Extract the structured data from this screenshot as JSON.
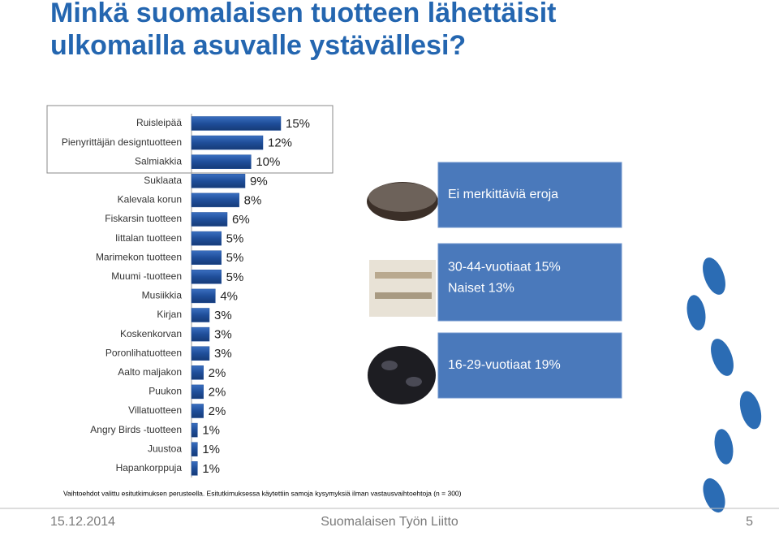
{
  "title": [
    "Minkä suomalaisen tuotteen lähettäisit",
    "ulkomailla asuvalle ystävällesi?"
  ],
  "chart_data": {
    "type": "bar",
    "orientation": "horizontal",
    "categories": [
      "Ruisleipää",
      "Pienyrittäjän designtuotteen",
      "Salmiakkia",
      "Suklaata",
      "Kalevala korun",
      "Fiskarsin tuotteen",
      "Iittalan tuotteen",
      "Marimekon tuotteen",
      "Muumi -tuotteen",
      "Musiikkia",
      "Kirjan",
      "Koskenkorvan",
      "Poronlihatuotteen",
      "Aalto maljakon",
      "Puukon",
      "Villatuotteen",
      "Angry Birds -tuotteen",
      "Juustoa",
      "Hapankorppuja"
    ],
    "values": [
      15,
      12,
      10,
      9,
      8,
      6,
      5,
      5,
      5,
      4,
      3,
      3,
      3,
      2,
      2,
      2,
      1,
      1,
      1
    ],
    "value_labels": [
      "15%",
      "12%",
      "10%",
      "9%",
      "8%",
      "6%",
      "5%",
      "5%",
      "5%",
      "4%",
      "3%",
      "3%",
      "3%",
      "2%",
      "2%",
      "2%",
      "1%",
      "1%",
      "1%"
    ],
    "color": "#1f4e9a"
  },
  "panels": [
    [
      "Ei merkittäviä eroja"
    ],
    [
      "30-44-vuotiaat 15%",
      "Naiset 13%"
    ],
    [
      "16-29-vuotiaat 19%"
    ]
  ],
  "footnote": "Vaihtoehdot valittu esitutkimuksen perusteella. Esitutkimuksessa käytettiin samoja kysymyksiä ilman vastausvaihtoehtoja (n = 300)",
  "footer": {
    "date": "15.12.2014",
    "organization": "Suomalaisen Työn Liitto",
    "page": "5"
  }
}
